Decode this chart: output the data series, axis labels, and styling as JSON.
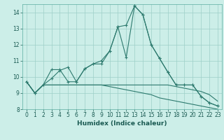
{
  "xlabel": "Humidex (Indice chaleur)",
  "x": [
    0,
    1,
    2,
    3,
    4,
    5,
    6,
    7,
    8,
    9,
    10,
    11,
    12,
    13,
    14,
    15,
    16,
    17,
    18,
    19,
    20,
    21,
    22,
    23
  ],
  "line1": [
    9.7,
    9.0,
    9.5,
    9.9,
    10.4,
    10.6,
    9.7,
    10.5,
    10.8,
    11.0,
    11.6,
    13.1,
    13.2,
    14.4,
    13.85,
    12.0,
    11.15,
    10.3,
    9.5,
    9.5,
    9.5,
    8.8,
    8.4,
    8.2
  ],
  "line2": [
    9.7,
    9.0,
    9.5,
    10.45,
    10.45,
    9.7,
    9.7,
    10.5,
    10.8,
    10.8,
    11.6,
    13.1,
    11.2,
    14.4,
    13.85,
    12.0,
    11.15,
    10.3,
    9.5,
    9.5,
    9.5,
    8.8,
    8.4,
    8.2
  ],
  "line3": [
    9.7,
    9.0,
    9.5,
    9.5,
    9.5,
    9.5,
    9.5,
    9.5,
    9.5,
    9.5,
    9.5,
    9.5,
    9.5,
    9.5,
    9.5,
    9.5,
    9.5,
    9.5,
    9.4,
    9.3,
    9.2,
    9.1,
    8.9,
    8.5
  ],
  "line4": [
    9.7,
    9.0,
    9.5,
    9.5,
    9.5,
    9.5,
    9.5,
    9.5,
    9.5,
    9.5,
    9.4,
    9.3,
    9.2,
    9.1,
    9.0,
    8.9,
    8.7,
    8.6,
    8.5,
    8.4,
    8.3,
    8.2,
    8.1,
    8.0
  ],
  "bg_color": "#cceee8",
  "line_color": "#2d7a6e",
  "grid_color": "#9dcfc8",
  "ylim": [
    8.0,
    14.5
  ],
  "xlim": [
    -0.5,
    23.5
  ],
  "yticks": [
    8,
    9,
    10,
    11,
    12,
    13,
    14
  ],
  "xticks": [
    0,
    1,
    2,
    3,
    4,
    5,
    6,
    7,
    8,
    9,
    10,
    11,
    12,
    13,
    14,
    15,
    16,
    17,
    18,
    19,
    20,
    21,
    22,
    23
  ],
  "tick_fontsize": 5.5,
  "label_fontsize": 6.5
}
